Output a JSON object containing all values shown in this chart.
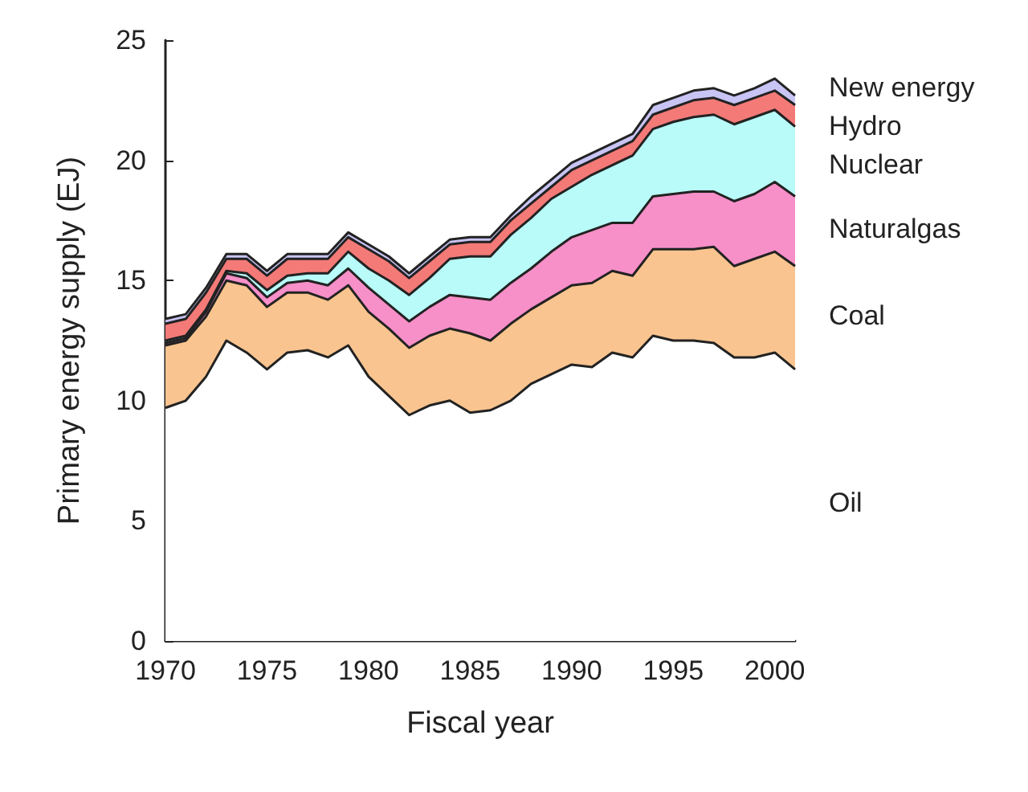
{
  "chart_data": {
    "type": "area",
    "stacked": true,
    "xlabel": "Fiscal year",
    "ylabel": "Primary energy supply (EJ)",
    "x": [
      1970,
      1971,
      1972,
      1973,
      1974,
      1975,
      1976,
      1977,
      1978,
      1979,
      1980,
      1981,
      1982,
      1983,
      1984,
      1985,
      1986,
      1987,
      1988,
      1989,
      1990,
      1991,
      1992,
      1993,
      1994,
      1995,
      1996,
      1997,
      1998,
      1999,
      2000,
      2001
    ],
    "xlim": [
      1970,
      2001
    ],
    "xticks": [
      1970,
      1975,
      1980,
      1985,
      1990,
      1995,
      2000
    ],
    "ylim": [
      0,
      25
    ],
    "yticks": [
      0,
      5,
      10,
      15,
      20,
      25
    ],
    "series": [
      {
        "name": "Oil",
        "color": "#ffffff",
        "values": [
          9.7,
          10.0,
          11.0,
          12.5,
          12.0,
          11.3,
          12.0,
          12.1,
          11.8,
          12.3,
          11.0,
          10.2,
          9.4,
          9.8,
          10.0,
          9.5,
          9.6,
          10.0,
          10.7,
          11.1,
          11.5,
          11.4,
          12.0,
          11.8,
          12.7,
          12.5,
          12.5,
          12.4,
          11.8,
          11.8,
          12.0,
          11.3
        ]
      },
      {
        "name": "Coal",
        "color": "#f9c48f",
        "values": [
          2.6,
          2.5,
          2.5,
          2.5,
          2.8,
          2.6,
          2.5,
          2.4,
          2.4,
          2.5,
          2.7,
          2.8,
          2.8,
          2.9,
          3.0,
          3.3,
          2.9,
          3.2,
          3.1,
          3.2,
          3.3,
          3.5,
          3.4,
          3.4,
          3.6,
          3.8,
          3.8,
          4.0,
          3.8,
          4.1,
          4.2,
          4.3
        ]
      },
      {
        "name": "Naturalgas",
        "color": "#f78fc8",
        "values": [
          0.1,
          0.1,
          0.2,
          0.3,
          0.3,
          0.4,
          0.4,
          0.5,
          0.6,
          0.7,
          1.0,
          1.0,
          1.1,
          1.2,
          1.4,
          1.5,
          1.7,
          1.7,
          1.7,
          1.9,
          2.0,
          2.2,
          2.0,
          2.2,
          2.2,
          2.3,
          2.4,
          2.3,
          2.7,
          2.7,
          2.9,
          2.9
        ]
      },
      {
        "name": "Nuclear",
        "color": "#b8fbf8",
        "values": [
          0.1,
          0.1,
          0.1,
          0.1,
          0.2,
          0.3,
          0.3,
          0.3,
          0.5,
          0.7,
          0.8,
          1.0,
          1.1,
          1.2,
          1.5,
          1.7,
          1.8,
          2.0,
          2.1,
          2.2,
          2.1,
          2.3,
          2.4,
          2.8,
          2.8,
          3.0,
          3.1,
          3.2,
          3.2,
          3.2,
          3.0,
          2.9
        ]
      },
      {
        "name": "Hydro",
        "color": "#f47a78",
        "values": [
          0.7,
          0.7,
          0.7,
          0.5,
          0.6,
          0.6,
          0.7,
          0.6,
          0.6,
          0.6,
          0.8,
          0.8,
          0.7,
          0.7,
          0.6,
          0.6,
          0.6,
          0.6,
          0.6,
          0.5,
          0.7,
          0.6,
          0.6,
          0.6,
          0.6,
          0.6,
          0.7,
          0.7,
          0.8,
          0.8,
          0.8,
          0.9
        ]
      },
      {
        "name": "New energy",
        "color": "#c8c4f4",
        "values": [
          0.2,
          0.2,
          0.2,
          0.2,
          0.2,
          0.2,
          0.2,
          0.2,
          0.2,
          0.2,
          0.2,
          0.2,
          0.2,
          0.2,
          0.2,
          0.2,
          0.2,
          0.2,
          0.3,
          0.3,
          0.3,
          0.3,
          0.3,
          0.3,
          0.4,
          0.4,
          0.4,
          0.4,
          0.4,
          0.4,
          0.5,
          0.4
        ]
      }
    ]
  }
}
